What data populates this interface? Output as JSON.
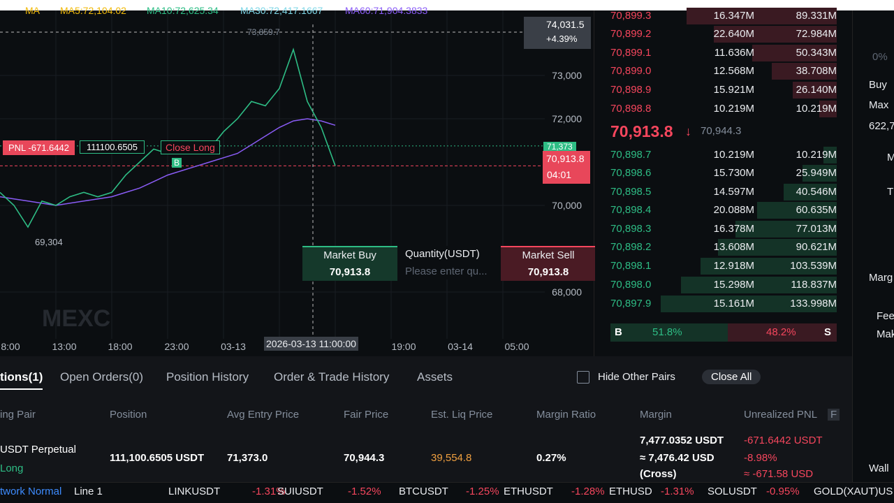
{
  "chart": {
    "type": "line",
    "ma_header": [
      "MA",
      "MA5:72,104.02",
      "MA10:72,625.34",
      "MA30:72,417.1667",
      "MA60:71,904.3833"
    ],
    "ylim": [
      67000,
      74500
    ],
    "yticks": [
      {
        "value": 68000,
        "label": "68,000"
      },
      {
        "value": 70000,
        "label": "70,000"
      },
      {
        "value": 72000,
        "label": "72,000"
      },
      {
        "value": 73000,
        "label": "73,000"
      }
    ],
    "xticks": [
      "8:00",
      "13:00",
      "18:00",
      "23:00",
      "03-13",
      "19:00",
      "03-14",
      "05:00"
    ],
    "crosshair_time": "2026-03-13 11:00:00",
    "crosshair_price": "74,031.5",
    "crosshair_change": "+4.39%",
    "high_label": "73,859.7",
    "low_label": "69,304",
    "price": {
      "color": "#2ebd85",
      "values": [
        70300,
        70000,
        69500,
        70100,
        70000,
        70200,
        70300,
        70200,
        70300,
        70700,
        71000,
        71300,
        71200,
        71300,
        71400,
        71300,
        71700,
        72000,
        72400,
        72300,
        72700,
        73600,
        72400,
        71800,
        70913.8
      ]
    },
    "ma": {
      "color": "#8a5cf6",
      "values": [
        70200,
        70150,
        70100,
        70050,
        70000,
        70050,
        70100,
        70150,
        70200,
        70300,
        70400,
        70550,
        70700,
        70800,
        70900,
        71000,
        71100,
        71200,
        71400,
        71600,
        71800,
        71950,
        72000,
        71950,
        71850
      ]
    },
    "pnl_label": "PNL -671.6442",
    "position_size": "111100.6505",
    "close_long": "Close Long",
    "buy_marker": "B",
    "entry_price": {
      "value": 71373,
      "label": "71,373"
    },
    "last_price": {
      "value": 70913.8,
      "label": "70,913.8"
    },
    "countdown": "04:01",
    "watermark": "MEXC"
  },
  "quick_trade": {
    "market_buy": "Market Buy",
    "buy_price": "70,913.8",
    "quantity_label": "Quantity(USDT)",
    "quantity_placeholder": "Please enter qu...",
    "market_sell": "Market Sell",
    "sell_price": "70,913.8"
  },
  "book": {
    "asks": [
      [
        "70,899.3",
        "16.347M",
        "89.331M"
      ],
      [
        "70,899.2",
        "22.640M",
        "72.984M"
      ],
      [
        "70,899.1",
        "11.636M",
        "50.343M"
      ],
      [
        "70,899.0",
        "12.568M",
        "38.708M"
      ],
      [
        "70,898.9",
        "15.921M",
        "26.140M"
      ],
      [
        "70,898.8",
        "10.219M",
        "10.219M"
      ]
    ],
    "mid": {
      "price": "70,913.8",
      "arrow": "↓",
      "mark": "70,944.3"
    },
    "bids": [
      [
        "70,898.7",
        "10.219M",
        "10.219M"
      ],
      [
        "70,898.6",
        "15.730M",
        "25.949M"
      ],
      [
        "70,898.5",
        "14.597M",
        "40.546M"
      ],
      [
        "70,898.4",
        "20.088M",
        "60.635M"
      ],
      [
        "70,898.3",
        "16.378M",
        "77.013M"
      ],
      [
        "70,898.2",
        "13.608M",
        "90.621M"
      ],
      [
        "70,898.1",
        "12.918M",
        "103.539M"
      ],
      [
        "70,898.0",
        "15.298M",
        "118.837M"
      ],
      [
        "70,897.9",
        "15.161M",
        "133.998M"
      ]
    ],
    "ratio": {
      "b": "B",
      "buy": "51.8%",
      "sell": "48.2%",
      "s": "S"
    }
  },
  "side_panel": [
    "0%",
    "Buy",
    "Max",
    "622,7",
    "M",
    "T",
    "Marg",
    "Fee",
    "Mak",
    "Wall"
  ],
  "positions": {
    "tabs": [
      "tions(1)",
      "Open Orders(0)",
      "Position History",
      "Order & Trade History",
      "Assets"
    ],
    "hide_other": "Hide Other Pairs",
    "close_all": "Close All",
    "headers": [
      "ing Pair",
      "Position",
      "Avg Entry Price",
      "Fair Price",
      "Est. Liq Price",
      "Margin Ratio",
      "Margin",
      "Unrealized PNL",
      "F"
    ],
    "row": {
      "pair": "USDT  Perpetual",
      "side": "Long",
      "position": "111,100.6505 USDT",
      "avg_entry": "71,373.0",
      "fair": "70,944.3",
      "liq": "39,554.8",
      "ratio": "0.27%",
      "margin": "7,477.0352 USDT",
      "margin_usd": "≈ 7,476.42 USD",
      "margin_mode": "(Cross)",
      "pnl": "-671.6442 USDT",
      "pnl_pct": "-8.98%",
      "pnl_usd": "≈ -671.58 USD"
    }
  },
  "ticker": {
    "network": "twork Normal",
    "line": "Line 1",
    "items": [
      [
        "LINKUSDT",
        "-1.31%"
      ],
      [
        "SUIUSDT",
        "-1.52%"
      ],
      [
        "BTCUSDT",
        "-1.25%"
      ],
      [
        "ETHUSDT",
        "-1.28%"
      ],
      [
        "ETHUSD",
        "-1.31%"
      ],
      [
        "SOLUSDT",
        "-0.95%"
      ],
      [
        "GOLD(XAUT)US",
        ""
      ]
    ]
  }
}
